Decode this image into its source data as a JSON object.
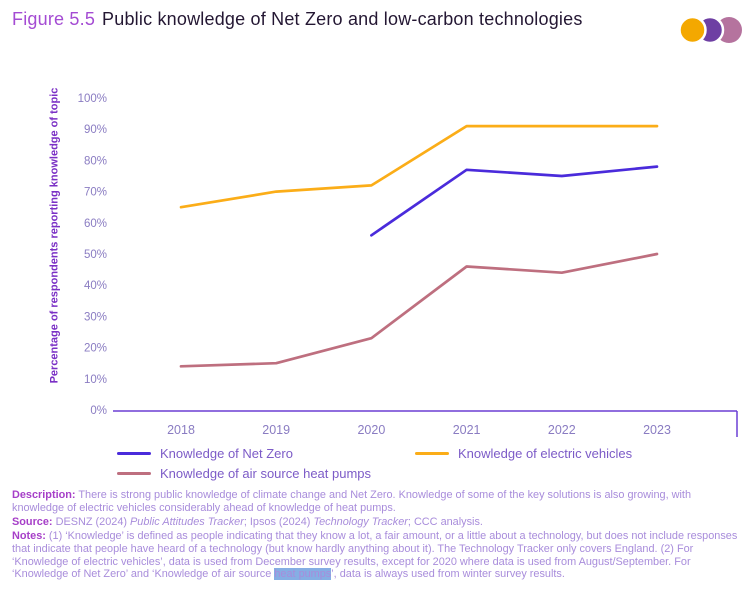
{
  "figure": {
    "label": "Figure 5.5",
    "title": "Public knowledge of Net Zero and low-carbon technologies"
  },
  "logo": {
    "name": "ccc-logo",
    "colors": [
      "#F4A800",
      "#6E3FA3",
      "#B5739E"
    ]
  },
  "chart_data": {
    "type": "line",
    "title": "Public knowledge of Net Zero and low-carbon technologies",
    "categories": [
      "2018",
      "2019",
      "2020",
      "2021",
      "2022",
      "2023"
    ],
    "series": [
      {
        "name": "Knowledge of Net Zero",
        "color": "#4A2BDB",
        "values": [
          null,
          null,
          56,
          77,
          75,
          78
        ]
      },
      {
        "name": "Knowledge of electric vehicles",
        "color": "#FBAD18",
        "values": [
          65,
          70,
          72,
          91,
          91,
          91
        ]
      },
      {
        "name": "Knowledge of air source heat pumps",
        "color": "#BE6F7F",
        "values": [
          14,
          15,
          23,
          46,
          44,
          50
        ]
      }
    ],
    "ylabel": "Percentage of respondents reporting knowledge of topic",
    "xlabel": "",
    "ylim": [
      0,
      100
    ],
    "ytick_labels": [
      "0%",
      "10%",
      "20%",
      "30%",
      "40%",
      "50%",
      "60%",
      "70%",
      "80%",
      "90%",
      "100%"
    ],
    "grid": false,
    "legend_position": "bottom"
  },
  "footer": {
    "description_label": "Description:",
    "description": " There is strong public knowledge of climate change and Net Zero. Knowledge of some of the key solutions is also growing, with knowledge of electric vehicles considerably ahead of knowledge of heat pumps.",
    "source_label": "Source:",
    "source_pre": " DESNZ (2024) ",
    "source_italic1": "Public Attitudes Tracker",
    "source_mid": "; Ipsos (2024) ",
    "source_italic2": "Technology Tracker",
    "source_post": "; CCC analysis.",
    "notes_label": "Notes:",
    "notes_part1": " (1) ‘Knowledge’ is defined as people indicating that they know a lot, a fair amount, or a little about a technology, but does not include responses that indicate that people have heard of a technology (but know hardly anything about it). The Technology Tracker only covers England. (2) For ‘Knowledge of electric vehicles’, data is used from December survey results, except for 2020 where data is used from August/September. For ‘Knowledge of Net Zero’ and ‘Knowledge of air source ",
    "notes_highlight": "heat pumps",
    "notes_part2": "’, data is always used from winter survey results."
  }
}
